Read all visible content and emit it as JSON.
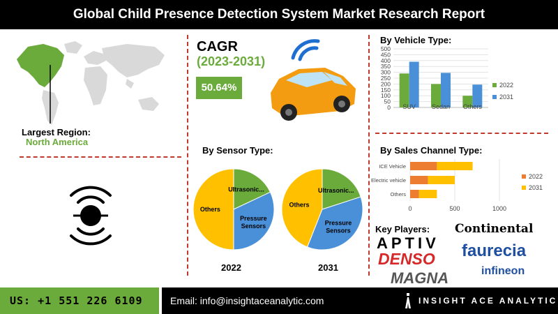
{
  "header": {
    "title": "Global Child Presence Detection System Market Research Report"
  },
  "region": {
    "label": "Largest Region:",
    "value": "North America"
  },
  "cagr": {
    "title": "CAGR",
    "years": "(2023-2031)",
    "value": "50.64%"
  },
  "sections": {
    "vehicle": "By Vehicle Type:",
    "sensor": "By Sensor Type:",
    "sales": "By Sales Channel Type:",
    "players": "Key Players:"
  },
  "colors": {
    "green": "#6aab3b",
    "blue": "#4a90d9",
    "yellow": "#ffc000",
    "orange": "#ed7d31",
    "red": "#c0392b"
  },
  "icons": [
    "world-map-icon",
    "connected-car-icon",
    "radar-sensor-icon",
    "insight-ace-logo-icon"
  ],
  "chart_data": [
    {
      "type": "bar",
      "categories": [
        "SUV",
        "Sedan",
        "Others"
      ],
      "series": [
        {
          "name": "2022",
          "values": [
            290,
            200,
            100
          ]
        },
        {
          "name": "2031",
          "values": [
            390,
            295,
            195
          ]
        }
      ],
      "yticks": [
        "0",
        "50",
        "100",
        "150",
        "200",
        "250",
        "300",
        "350",
        "400",
        "450",
        "500"
      ],
      "ylim": [
        0,
        500
      ],
      "legend": "right"
    },
    {
      "type": "pie",
      "label": "2022",
      "slices": [
        {
          "name": "Others",
          "value": 50
        },
        {
          "name": "Ultrasonic...",
          "value": 18
        },
        {
          "name": "Pressure Sensors",
          "value": 32
        }
      ]
    },
    {
      "type": "pie",
      "label": "2031",
      "slices": [
        {
          "name": "Others",
          "value": 44
        },
        {
          "name": "Ultrasonic...",
          "value": 20
        },
        {
          "name": "Pressure Sensors",
          "value": 36
        }
      ]
    },
    {
      "type": "bar",
      "orientation": "horizontal-stacked",
      "categories": [
        "ICE Vehicle",
        "Electric vehicle",
        "Others"
      ],
      "series": [
        {
          "name": "2022",
          "values": [
            300,
            200,
            100
          ]
        },
        {
          "name": "2031",
          "values": [
            400,
            300,
            200
          ]
        }
      ],
      "xticks": [
        "0",
        "500",
        "1000"
      ],
      "xlim": [
        0,
        1000
      ],
      "legend": "right"
    }
  ],
  "players": [
    "Continental",
    "APTIV",
    "faurecia",
    "DENSO",
    "MAGNA",
    "infineon"
  ],
  "footer": {
    "phone": "US: +1 551 226 6109",
    "email": "Email: info@insightaceanalytic.com",
    "brand": "INSIGHT ACE ANALYTIC"
  }
}
